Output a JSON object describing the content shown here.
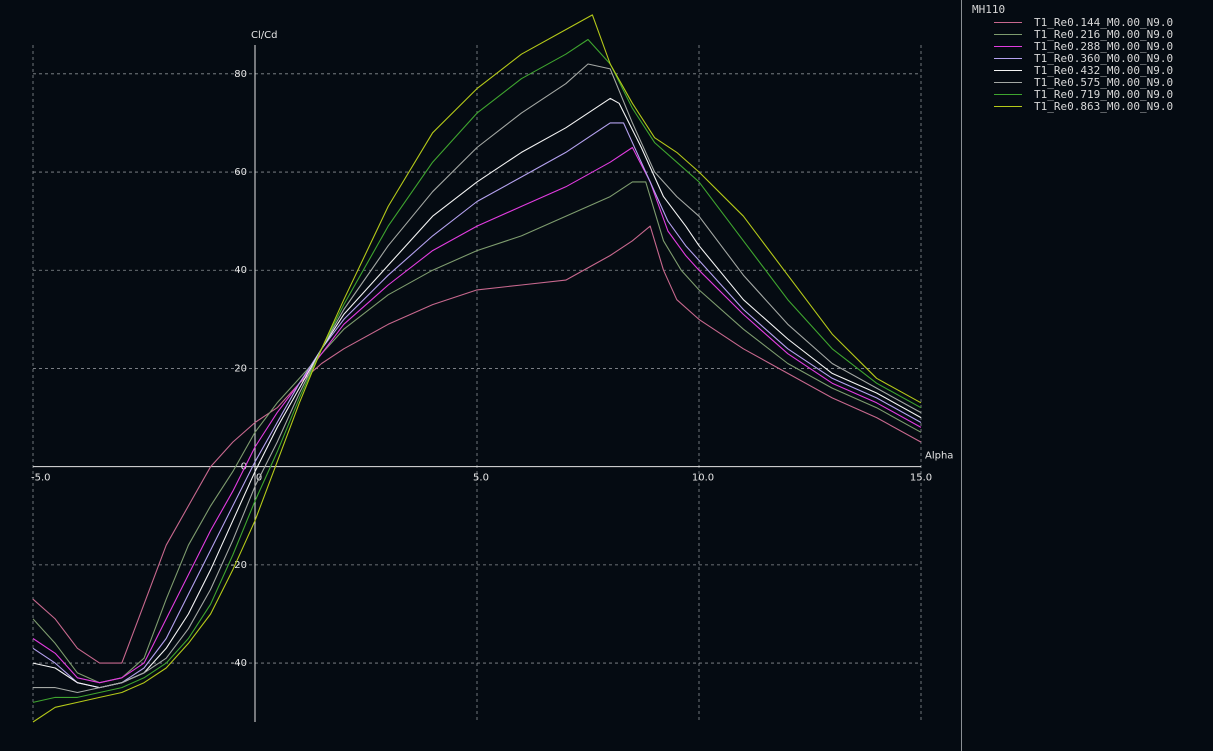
{
  "chart_data": {
    "type": "line",
    "title": "",
    "xlabel": "Alpha",
    "ylabel": "Cl/Cd",
    "xlim": [
      -5.0,
      15.0
    ],
    "ylim": [
      -52,
      93
    ],
    "grid": true,
    "legend_placement": "right",
    "xticks": [
      "-5.0",
      "0",
      "5.0",
      "10.0",
      "15.0"
    ],
    "xtick_values": [
      -5,
      0,
      5,
      10,
      15
    ],
    "yticks": [
      "-40",
      "-20",
      "0",
      "20",
      "40",
      "60",
      "80"
    ],
    "ytick_values": [
      -40,
      -20,
      0,
      20,
      40,
      60,
      80
    ],
    "legend_title": "MH110",
    "series": [
      {
        "name": "T1_Re0.144_M0.00_N9.0",
        "color": "#c8688e",
        "x": [
          -5,
          -4.5,
          -4,
          -3.5,
          -3,
          -2.5,
          -2,
          -1.5,
          -1,
          -0.5,
          0,
          0.5,
          1,
          1.5,
          2,
          3,
          4,
          5,
          6,
          7,
          8,
          8.5,
          8.9,
          9.2,
          9.5,
          10,
          11,
          12,
          13,
          14,
          15
        ],
        "y": [
          -27,
          -31,
          -37,
          -40,
          -40,
          -28,
          -16,
          -8,
          0,
          5,
          9,
          12,
          17,
          21,
          24,
          29,
          33,
          36,
          37,
          38,
          43,
          46,
          49,
          40,
          34,
          30,
          24,
          19,
          14,
          10,
          5
        ]
      },
      {
        "name": "T1_Re0.216_M0.00_N9.0",
        "color": "#7e9c6e",
        "x": [
          -5,
          -4.5,
          -4,
          -3.5,
          -3,
          -2.5,
          -2,
          -1.5,
          -1,
          -0.5,
          0,
          0.5,
          1,
          1.5,
          2,
          3,
          4,
          5,
          6,
          7,
          8,
          8.5,
          8.8,
          9.2,
          9.6,
          10,
          11,
          12,
          13,
          14,
          15
        ],
        "y": [
          -31,
          -36,
          -42,
          -44,
          -43,
          -39,
          -27,
          -16,
          -8,
          -1,
          7,
          13,
          18,
          23,
          28,
          35,
          40,
          44,
          47,
          51,
          55,
          58,
          58,
          46,
          40,
          36,
          28,
          21,
          16,
          12,
          7
        ]
      },
      {
        "name": "T1_Re0.288_M0.00_N9.0",
        "color": "#e23ce0",
        "x": [
          -5,
          -4.5,
          -4,
          -3.5,
          -3,
          -2.5,
          -2,
          -1.5,
          -1,
          -0.5,
          0,
          0.5,
          1,
          1.5,
          2,
          3,
          4,
          5,
          6,
          7,
          8,
          8.5,
          8.9,
          9.3,
          9.7,
          10,
          11,
          12,
          13,
          14,
          15
        ],
        "y": [
          -35,
          -38,
          -43,
          -44,
          -43,
          -40,
          -31,
          -22,
          -13,
          -5,
          4,
          11,
          17,
          23,
          29,
          37,
          44,
          49,
          53,
          57,
          62,
          65,
          58,
          48,
          43,
          40,
          31,
          23,
          17,
          13,
          8
        ]
      },
      {
        "name": "T1_Re0.360_M0.00_N9.0",
        "color": "#b5a2f0",
        "x": [
          -5,
          -4.5,
          -4,
          -3.5,
          -3,
          -2.5,
          -2,
          -1.5,
          -1,
          -0.5,
          0,
          0.5,
          1,
          1.5,
          2,
          3,
          4,
          5,
          6,
          7,
          8,
          8.3,
          8.8,
          9.3,
          9.7,
          10,
          11,
          12,
          13,
          14,
          15
        ],
        "y": [
          -37,
          -40,
          -44,
          -45,
          -44,
          -41,
          -35,
          -26,
          -17,
          -8,
          1,
          9,
          17,
          24,
          30,
          39,
          47,
          54,
          59,
          64,
          70,
          70,
          60,
          50,
          45,
          42,
          32,
          24,
          18,
          14,
          9
        ]
      },
      {
        "name": "T1_Re0.432_M0.00_N9.0",
        "color": "#f4f4f4",
        "x": [
          -5,
          -4.5,
          -4,
          -3.5,
          -3,
          -2.5,
          -2,
          -1.5,
          -1,
          -0.5,
          0,
          0.5,
          1,
          1.5,
          2,
          3,
          4,
          5,
          6,
          7,
          8,
          8.2,
          8.7,
          9.2,
          9.7,
          10,
          11,
          12,
          13,
          14,
          15
        ],
        "y": [
          -40,
          -41,
          -44,
          -45,
          -44,
          -42,
          -37,
          -30,
          -21,
          -11,
          -1,
          8,
          16,
          24,
          31,
          41,
          51,
          58,
          64,
          69,
          75,
          74,
          65,
          55,
          49,
          45,
          34,
          26,
          19,
          15,
          10
        ]
      },
      {
        "name": "T1_Re0.575_M0.00_N9.0",
        "color": "#a4a8a4",
        "x": [
          -5,
          -4.5,
          -4,
          -3.5,
          -3,
          -2.5,
          -2,
          -1.5,
          -1,
          -0.5,
          0,
          0.5,
          1,
          1.5,
          2,
          3,
          4,
          5,
          6,
          7,
          7.5,
          8,
          8.5,
          9,
          9.5,
          10,
          11,
          12,
          13,
          14,
          15
        ],
        "y": [
          -45,
          -45,
          -46,
          -45,
          -44,
          -42,
          -39,
          -33,
          -25,
          -15,
          -4,
          5,
          15,
          24,
          32,
          45,
          56,
          65,
          72,
          78,
          82,
          81,
          70,
          60,
          55,
          51,
          39,
          29,
          21,
          16,
          11
        ]
      },
      {
        "name": "T1_Re0.719_M0.00_N9.0",
        "color": "#3fa52f",
        "x": [
          -5,
          -4.5,
          -4,
          -3.5,
          -3,
          -2.5,
          -2,
          -1.5,
          -1,
          -0.5,
          0,
          0.5,
          1,
          1.5,
          2,
          3,
          4,
          5,
          6,
          7,
          7.5,
          8,
          8.5,
          9,
          9.5,
          10,
          11,
          12,
          13,
          14,
          15
        ],
        "y": [
          -48,
          -47,
          -47,
          -46,
          -45,
          -43,
          -40,
          -35,
          -28,
          -18,
          -7,
          3,
          14,
          24,
          33,
          49,
          62,
          72,
          79,
          84,
          87,
          82,
          73,
          66,
          62,
          58,
          46,
          34,
          24,
          17,
          12
        ]
      },
      {
        "name": "T1_Re0.863_M0.00_N9.0",
        "color": "#b5c919",
        "x": [
          -5,
          -4.5,
          -4,
          -3.5,
          -3,
          -2.5,
          -2,
          -1.5,
          -1,
          -0.5,
          0,
          0.5,
          1,
          1.5,
          2,
          3,
          4,
          5,
          6,
          7,
          7.6,
          8,
          8.5,
          9,
          9.5,
          10,
          11,
          12,
          13,
          14,
          15
        ],
        "y": [
          -52,
          -49,
          -48,
          -47,
          -46,
          -44,
          -41,
          -36,
          -30,
          -21,
          -11,
          1,
          13,
          24,
          34,
          53,
          68,
          77,
          84,
          89,
          92,
          82,
          74,
          67,
          64,
          60,
          51,
          39,
          27,
          18,
          13
        ]
      }
    ]
  },
  "colors": {
    "background": "#050b12",
    "axis": "#e6e6e6",
    "grid": "#8a8f94"
  }
}
